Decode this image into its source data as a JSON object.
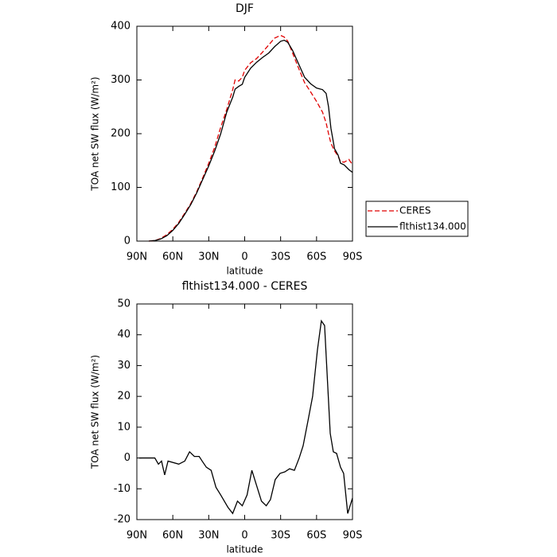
{
  "chart_data": [
    {
      "type": "line",
      "title": "DJF",
      "xlabel": "latitude",
      "ylabel": "TOA net SW flux (W/m²)",
      "x": [
        80,
        75,
        70,
        65,
        60,
        55,
        50,
        45,
        40,
        35,
        30,
        25,
        20,
        15,
        10,
        8,
        5,
        2,
        0,
        -5,
        -10,
        -15,
        -20,
        -25,
        -30,
        -33,
        -36,
        -40,
        -45,
        -50,
        -55,
        -60,
        -65,
        -68,
        -70,
        -72,
        -75,
        -78,
        -80,
        -83,
        -87,
        -90
      ],
      "series": [
        {
          "name": "CERES",
          "color": "#e00000",
          "dash": true,
          "values": [
            0,
            1,
            5,
            12,
            22,
            35,
            52,
            70,
            92,
            118,
            145,
            175,
            212,
            245,
            282,
            300,
            298,
            305,
            318,
            332,
            340,
            352,
            365,
            378,
            383,
            380,
            372,
            350,
            322,
            295,
            278,
            260,
            240,
            220,
            200,
            182,
            168,
            158,
            148,
            147,
            152,
            142
          ]
        },
        {
          "name": "flthist134.000",
          "color": "#000000",
          "dash": false,
          "values": [
            0,
            1,
            4,
            10,
            20,
            33,
            50,
            68,
            90,
            115,
            140,
            168,
            200,
            240,
            268,
            283,
            288,
            292,
            305,
            322,
            333,
            342,
            350,
            362,
            372,
            374,
            370,
            355,
            330,
            305,
            293,
            285,
            282,
            275,
            250,
            210,
            172,
            160,
            145,
            142,
            133,
            128
          ]
        }
      ],
      "xlim": [
        90,
        -90
      ],
      "xticks": [
        {
          "value": 90,
          "label": "90N"
        },
        {
          "value": 60,
          "label": "60N"
        },
        {
          "value": 30,
          "label": "30N"
        },
        0,
        {
          "value": -30,
          "label": "30S"
        },
        {
          "value": -60,
          "label": "60S"
        },
        {
          "value": -90,
          "label": "90S"
        }
      ],
      "ylim": [
        0,
        400
      ],
      "yticks": [
        0,
        100,
        200,
        300,
        400
      ],
      "legend": "right"
    },
    {
      "type": "line",
      "title": "flthist134.000 - CERES",
      "xlabel": "latitude",
      "ylabel": "TOA net SW flux (W/m²)",
      "color": "#000000",
      "x": [
        88,
        75,
        72,
        69.4,
        66.8,
        64,
        55,
        50,
        46,
        42,
        38,
        35.5,
        32,
        28,
        24,
        20,
        14,
        10,
        6,
        2,
        -2,
        -6,
        -10,
        -14,
        -18,
        -21.5,
        -25.5,
        -29.5,
        -33.5,
        -37.5,
        -41.5,
        -45.5,
        -48.8,
        -52.8,
        -56.7,
        -60.7,
        -64,
        -66.7,
        -71.4,
        -74,
        -76.7,
        -80,
        -82.6,
        -86,
        -90
      ],
      "values": [
        0,
        0,
        -2,
        -1,
        -5.5,
        -1,
        -2,
        -1,
        2,
        0.5,
        0.5,
        -1,
        -3,
        -4,
        -9.5,
        -12,
        -16,
        -18,
        -14,
        -15.5,
        -12,
        -4,
        -9,
        -14,
        -15.5,
        -13.5,
        -7,
        -5,
        -4.5,
        -3.5,
        -4,
        0,
        4,
        12,
        20,
        35,
        44.5,
        43,
        8,
        2,
        1.5,
        -3,
        -5,
        -18,
        -13
      ],
      "xlim": [
        90,
        -90
      ],
      "xticks": [
        {
          "value": 90,
          "label": "90N"
        },
        {
          "value": 60,
          "label": "60N"
        },
        {
          "value": 30,
          "label": "30N"
        },
        0,
        {
          "value": -30,
          "label": "30S"
        },
        {
          "value": -60,
          "label": "60S"
        },
        {
          "value": -90,
          "label": "90S"
        }
      ],
      "ylim": [
        -20,
        50
      ],
      "yticks": [
        -20,
        -10,
        0,
        10,
        20,
        30,
        40,
        50
      ]
    }
  ]
}
